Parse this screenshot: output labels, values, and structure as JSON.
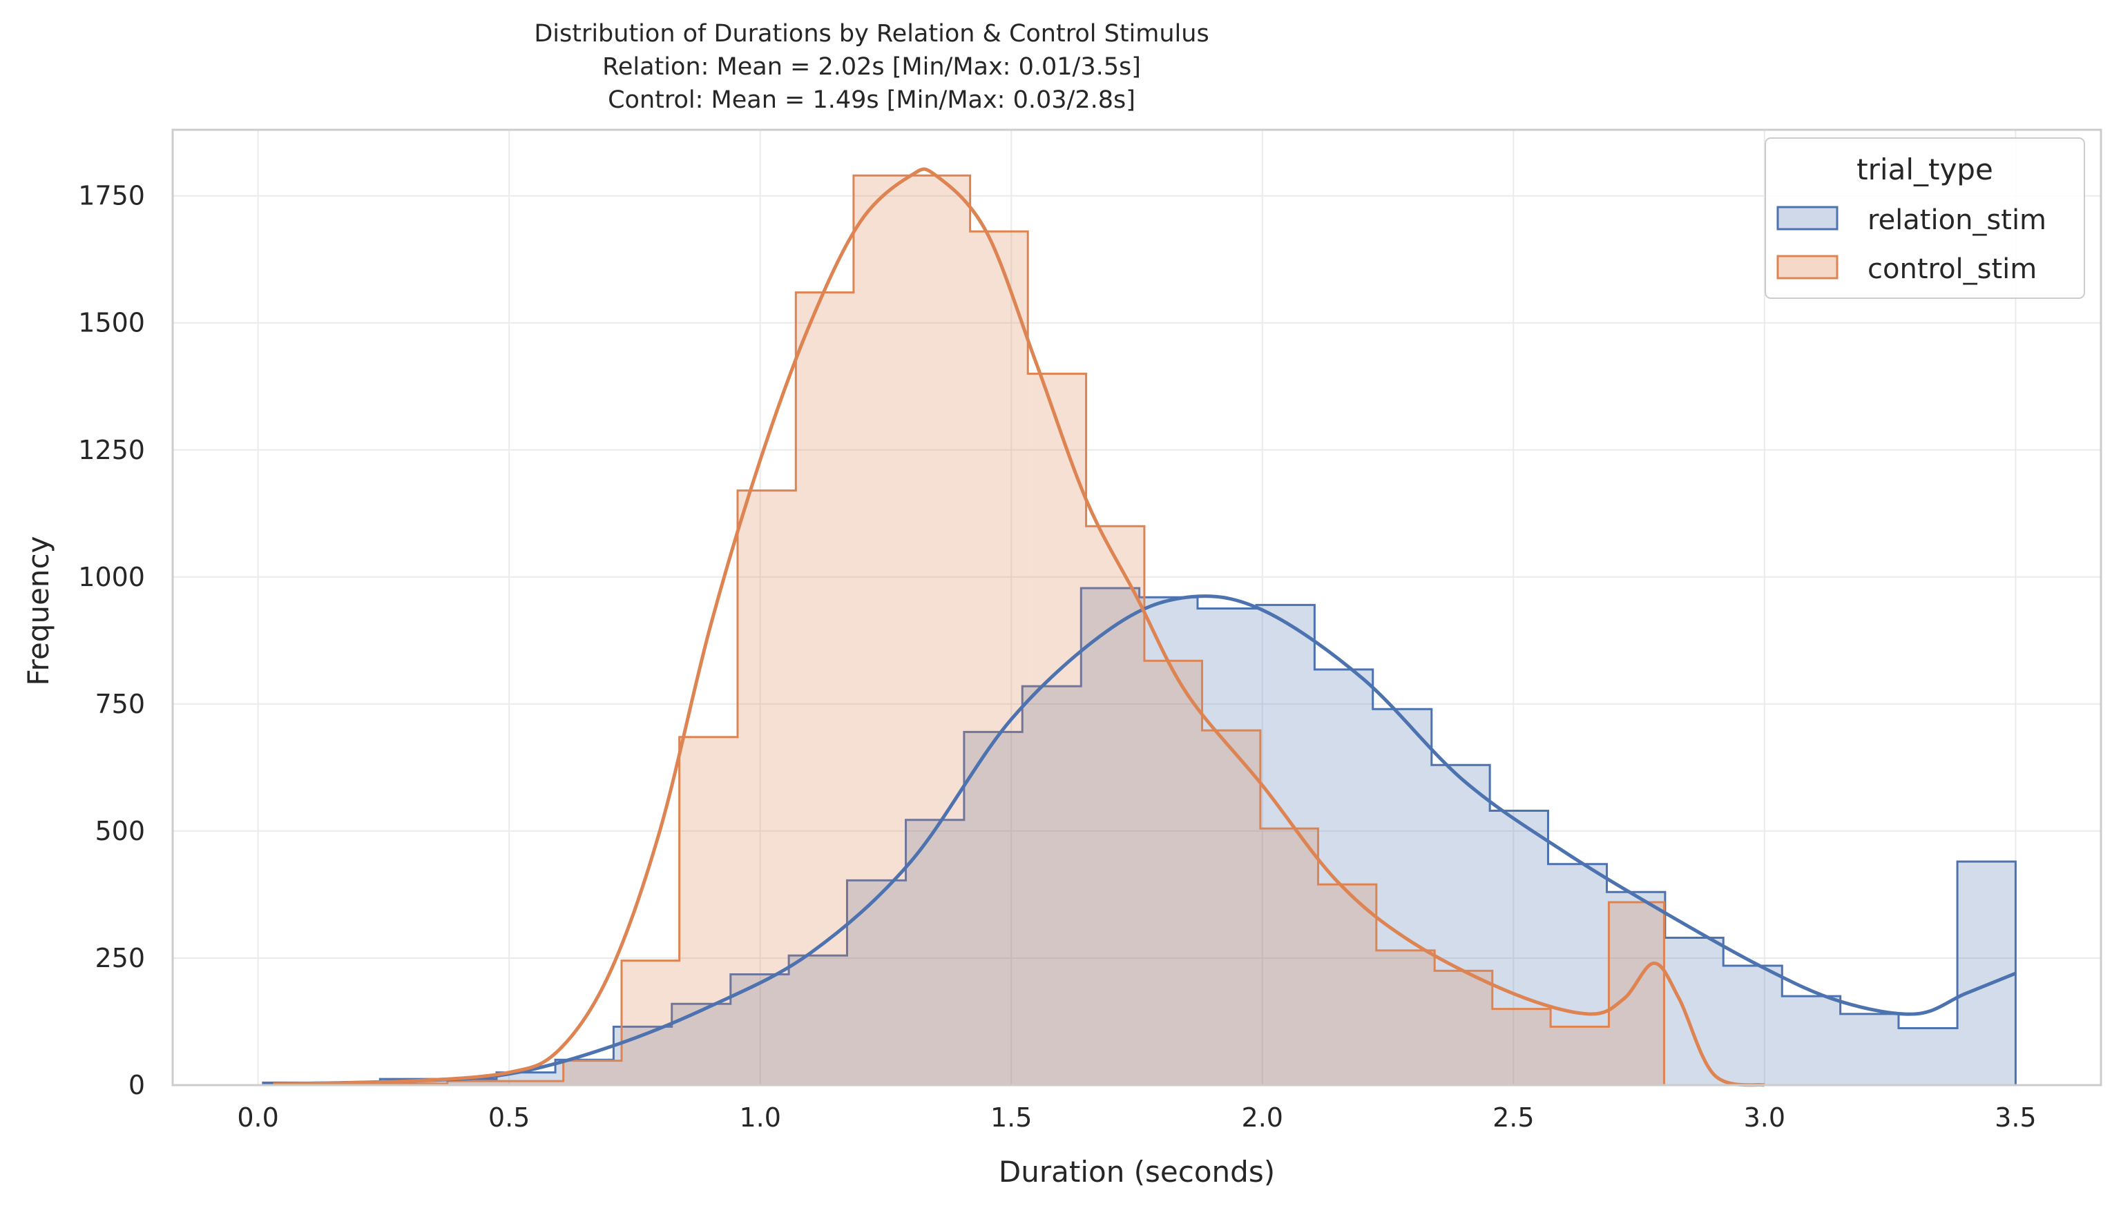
{
  "chart_data": {
    "type": "histogram",
    "title_lines": [
      "Distribution of Durations by Relation & Control Stimulus",
      "Relation: Mean = 2.02s [Min/Max: 0.01/3.5s]",
      "Control: Mean = 1.49s [Min/Max: 0.03/2.8s]"
    ],
    "xlabel": "Duration (seconds)",
    "ylabel": "Frequency",
    "xlim": [
      -0.17,
      3.67
    ],
    "ylim": [
      0,
      1880
    ],
    "xticks": [
      0.0,
      0.5,
      1.0,
      1.5,
      2.0,
      2.5,
      3.0,
      3.5
    ],
    "xtick_labels": [
      "0.0",
      "0.5",
      "1.0",
      "1.5",
      "2.0",
      "2.5",
      "3.0",
      "3.5"
    ],
    "yticks": [
      0,
      250,
      500,
      750,
      1000,
      1250,
      1500,
      1750
    ],
    "ytick_labels": [
      "0",
      "250",
      "500",
      "750",
      "1000",
      "1250",
      "1500",
      "1750"
    ],
    "grid": true,
    "legend": {
      "title": "trial_type",
      "placement": "top-right",
      "entries": [
        "relation_stim",
        "control_stim"
      ]
    },
    "series": [
      {
        "name": "relation_stim",
        "color": "#4c72b0",
        "fill": "#d0d9ea",
        "bin_edges": [
          0.01,
          0.126,
          0.243,
          0.359,
          0.475,
          0.592,
          0.708,
          0.824,
          0.941,
          1.057,
          1.173,
          1.29,
          1.406,
          1.522,
          1.639,
          1.755,
          1.871,
          1.988,
          2.104,
          2.22,
          2.337,
          2.453,
          2.569,
          2.686,
          2.802,
          2.918,
          3.035,
          3.151,
          3.267,
          3.384,
          3.5
        ],
        "counts": [
          5,
          5,
          12,
          12,
          25,
          50,
          115,
          160,
          218,
          255,
          403,
          522,
          695,
          785,
          978,
          960,
          938,
          945,
          818,
          740,
          630,
          540,
          435,
          380,
          290,
          235,
          175,
          140,
          112,
          440
        ],
        "kde_x": [
          0.01,
          0.3,
          0.5,
          0.7,
          0.9,
          1.1,
          1.3,
          1.5,
          1.7,
          1.85,
          2.0,
          2.2,
          2.4,
          2.6,
          2.8,
          3.0,
          3.15,
          3.3,
          3.4,
          3.5
        ],
        "kde_y": [
          2,
          8,
          22,
          75,
          155,
          260,
          440,
          720,
          900,
          960,
          935,
          800,
          600,
          460,
          340,
          230,
          165,
          140,
          180,
          220
        ]
      },
      {
        "name": "control_stim",
        "color": "#dd8452",
        "fill": "#f6d8c8",
        "bin_edges": [
          0.03,
          0.146,
          0.261,
          0.377,
          0.493,
          0.608,
          0.724,
          0.839,
          0.955,
          1.071,
          1.186,
          1.302,
          1.418,
          1.533,
          1.649,
          1.765,
          1.88,
          1.996,
          2.111,
          2.227,
          2.343,
          2.458,
          2.574,
          2.69,
          2.8
        ],
        "counts": [
          3,
          3,
          3,
          8,
          8,
          48,
          245,
          685,
          1170,
          1560,
          1790,
          1790,
          1680,
          1400,
          1100,
          835,
          698,
          505,
          395,
          265,
          225,
          150,
          115,
          360
        ],
        "kde_x": [
          0.03,
          0.3,
          0.5,
          0.6,
          0.7,
          0.8,
          0.9,
          1.0,
          1.1,
          1.2,
          1.3,
          1.35,
          1.45,
          1.55,
          1.65,
          1.75,
          1.85,
          2.0,
          2.15,
          2.3,
          2.5,
          2.65,
          2.72,
          2.78,
          2.83,
          2.9,
          3.0
        ],
        "kde_y": [
          2,
          8,
          25,
          70,
          220,
          500,
          900,
          1230,
          1500,
          1700,
          1790,
          1790,
          1680,
          1420,
          1150,
          960,
          770,
          590,
          400,
          280,
          180,
          140,
          170,
          240,
          170,
          20,
          0
        ]
      }
    ]
  }
}
